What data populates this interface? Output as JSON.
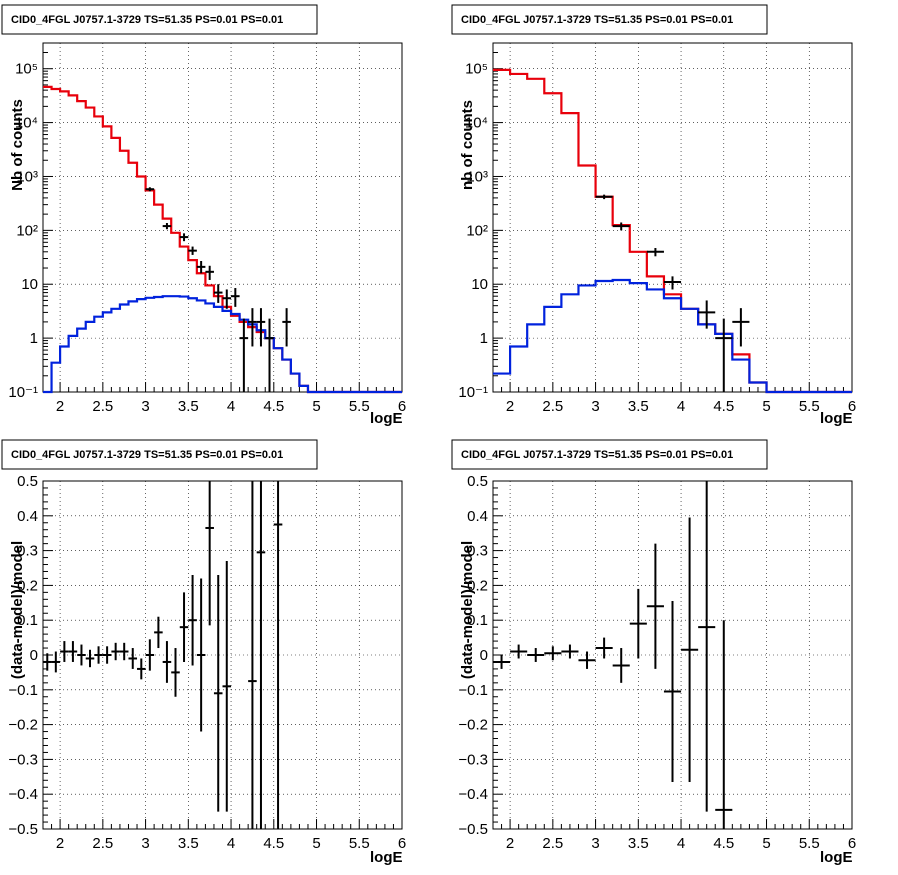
{
  "chart_data": [
    {
      "type": "line",
      "title": "CID0_4FGL J0757.1-3729 TS=51.35 PS=0.01 PS=0.01",
      "xlabel": "logE",
      "ylabel": "Nb of counts",
      "xlim": [
        1.8,
        6.0
      ],
      "ylim": [
        0.1,
        300000
      ],
      "yscale": "log",
      "grid": true,
      "x_ticks": [
        "2",
        "2.5",
        "3",
        "3.5",
        "4",
        "4.5",
        "5",
        "5.5",
        "6"
      ],
      "y_ticks": [
        "10⁻¹",
        "1",
        "10",
        "10²",
        "10³",
        "10⁴",
        "10⁵"
      ],
      "bin_edges": [
        1.8,
        1.9,
        2.0,
        2.1,
        2.2,
        2.3,
        2.4,
        2.5,
        2.6,
        2.7,
        2.8,
        2.9,
        3.0,
        3.1,
        3.2,
        3.3,
        3.4,
        3.5,
        3.6,
        3.7,
        3.8,
        3.9,
        4.0,
        4.1,
        4.2,
        4.3,
        4.4,
        4.5,
        4.6,
        4.7,
        4.8,
        4.9,
        5.0,
        5.1,
        5.2,
        5.3,
        5.4,
        5.5,
        5.6,
        5.7,
        5.8,
        5.9,
        6.0
      ],
      "series": [
        {
          "color": "#e8000b",
          "values": [
            46000,
            42000,
            38000,
            32000,
            25000,
            19000,
            13000,
            8500,
            5200,
            3000,
            1800,
            1000,
            550,
            300,
            165,
            90,
            50,
            28,
            16,
            9.5,
            6,
            3.8,
            2.6,
            2,
            1.6,
            1.3,
            1,
            0.65,
            0.4,
            0.22,
            0.13,
            0.1,
            0.1,
            0.1,
            0.1,
            0.1,
            0.1,
            0.1,
            0.1,
            0.1,
            0.1,
            0.1
          ]
        },
        {
          "color": "#0022dd",
          "values": [
            0.1,
            0.35,
            0.7,
            1.1,
            1.5,
            2,
            2.5,
            3,
            3.5,
            4.2,
            4.8,
            5.3,
            5.6,
            5.8,
            6,
            6,
            5.9,
            5.5,
            5,
            4.4,
            3.8,
            3.2,
            2.8,
            2.2,
            1.8,
            1.4,
            1,
            0.65,
            0.4,
            0.22,
            0.13,
            0.1,
            0.1,
            0.1,
            0.1,
            0.1,
            0.1,
            0.1,
            0.1,
            0.1,
            0.1,
            0.1
          ]
        }
      ],
      "data_points": [
        {
          "x": 3.05,
          "y": 580,
          "lo": 530,
          "hi": 630
        },
        {
          "x": 3.25,
          "y": 120,
          "lo": 105,
          "hi": 137
        },
        {
          "x": 3.45,
          "y": 75,
          "lo": 63,
          "hi": 88
        },
        {
          "x": 3.55,
          "y": 42,
          "lo": 35,
          "hi": 50
        },
        {
          "x": 3.65,
          "y": 21,
          "lo": 16,
          "hi": 27
        },
        {
          "x": 3.75,
          "y": 17,
          "lo": 12,
          "hi": 22
        },
        {
          "x": 3.85,
          "y": 7,
          "lo": 4.5,
          "hi": 10
        },
        {
          "x": 3.95,
          "y": 5.5,
          "lo": 3.5,
          "hi": 8
        },
        {
          "x": 4.05,
          "y": 6,
          "lo": 3.8,
          "hi": 8.5
        },
        {
          "x": 4.15,
          "y": 1,
          "lo": 0.1,
          "hi": 2.3
        },
        {
          "x": 4.25,
          "y": 2,
          "lo": 0.7,
          "hi": 3.6
        },
        {
          "x": 4.35,
          "y": 2,
          "lo": 0.7,
          "hi": 3.6
        },
        {
          "x": 4.45,
          "y": 1,
          "lo": 0.1,
          "hi": 2.3
        },
        {
          "x": 4.65,
          "y": 2,
          "lo": 0.7,
          "hi": 3.6
        }
      ]
    },
    {
      "type": "line",
      "title": "CID0_4FGL J0757.1-3729 TS=51.35 PS=0.01 PS=0.01",
      "xlabel": "logE",
      "ylabel": "nb of counts",
      "xlim": [
        1.8,
        6.0
      ],
      "ylim": [
        0.1,
        300000
      ],
      "yscale": "log",
      "grid": true,
      "x_ticks": [
        "2",
        "2.5",
        "3",
        "3.5",
        "4",
        "4.5",
        "5",
        "5.5",
        "6"
      ],
      "y_ticks": [
        "10⁻¹",
        "1",
        "10",
        "10²",
        "10³",
        "10⁴",
        "10⁵"
      ],
      "bin_edges": [
        1.8,
        2.0,
        2.2,
        2.4,
        2.6,
        2.8,
        3.0,
        3.2,
        3.4,
        3.6,
        3.8,
        4.0,
        4.2,
        4.4,
        4.6,
        4.8,
        5.0,
        5.2,
        5.4,
        5.6,
        5.8,
        6.0
      ],
      "series": [
        {
          "color": "#e8000b",
          "values": [
            95000,
            80000,
            65000,
            35000,
            15000,
            1600,
            420,
            125,
            40,
            14,
            6.5,
            3.5,
            1.8,
            1.2,
            0.5,
            0.15,
            0.1,
            0.1,
            0.1,
            0.1,
            0.1
          ]
        },
        {
          "color": "#0022dd",
          "values": [
            0.22,
            0.7,
            1.8,
            3.8,
            6.5,
            9.5,
            11.5,
            12,
            10.5,
            8,
            5.5,
            3.5,
            1.8,
            1.2,
            0.4,
            0.15,
            0.1,
            0.1,
            0.1,
            0.1,
            0.1
          ]
        }
      ],
      "data_points": [
        {
          "x": 3.1,
          "y": 420,
          "lo": 380,
          "hi": 460
        },
        {
          "x": 3.3,
          "y": 120,
          "lo": 100,
          "hi": 140
        },
        {
          "x": 3.7,
          "y": 40,
          "lo": 33,
          "hi": 47
        },
        {
          "x": 3.9,
          "y": 11,
          "lo": 8,
          "hi": 14
        },
        {
          "x": 4.3,
          "y": 3,
          "lo": 1.5,
          "hi": 5
        },
        {
          "x": 4.5,
          "y": 1,
          "lo": 0.1,
          "hi": 2.3
        },
        {
          "x": 4.7,
          "y": 2,
          "lo": 0.7,
          "hi": 3.6
        }
      ]
    },
    {
      "type": "scatter",
      "title": "CID0_4FGL J0757.1-3729 TS=51.35 PS=0.01 PS=0.01",
      "xlabel": "logE",
      "ylabel": "(data-model)/model",
      "xlim": [
        1.8,
        6.0
      ],
      "ylim": [
        -0.5,
        0.5
      ],
      "grid": true,
      "x_ticks": [
        "2",
        "2.5",
        "3",
        "3.5",
        "4",
        "4.5",
        "5",
        "5.5",
        "6"
      ],
      "y_ticks": [
        "−0.5",
        "−0.4",
        "−0.3",
        "−0.2",
        "−0.1",
        "0",
        "0.1",
        "0.2",
        "0.3",
        "0.4",
        "0.5"
      ],
      "xerr": 0.05,
      "points": [
        {
          "x": 1.85,
          "y": -0.02,
          "err": 0.025
        },
        {
          "x": 1.95,
          "y": -0.02,
          "err": 0.03
        },
        {
          "x": 2.05,
          "y": 0.01,
          "err": 0.03
        },
        {
          "x": 2.15,
          "y": 0.01,
          "err": 0.03
        },
        {
          "x": 2.25,
          "y": 0.0,
          "err": 0.03
        },
        {
          "x": 2.35,
          "y": -0.01,
          "err": 0.025
        },
        {
          "x": 2.45,
          "y": 0.0,
          "err": 0.025
        },
        {
          "x": 2.55,
          "y": 0.0,
          "err": 0.025
        },
        {
          "x": 2.65,
          "y": 0.01,
          "err": 0.025
        },
        {
          "x": 2.75,
          "y": 0.01,
          "err": 0.025
        },
        {
          "x": 2.85,
          "y": -0.01,
          "err": 0.03
        },
        {
          "x": 2.95,
          "y": -0.04,
          "err": 0.03
        },
        {
          "x": 3.05,
          "y": 0.0,
          "err": 0.045
        },
        {
          "x": 3.15,
          "y": 0.065,
          "err": 0.045
        },
        {
          "x": 3.25,
          "y": -0.02,
          "err": 0.06
        },
        {
          "x": 3.35,
          "y": -0.05,
          "err": 0.07
        },
        {
          "x": 3.45,
          "y": 0.08,
          "err": 0.1
        },
        {
          "x": 3.55,
          "y": 0.1,
          "err": 0.13
        },
        {
          "x": 3.65,
          "y": 0.0,
          "err": 0.22
        },
        {
          "x": 3.75,
          "y": 0.365,
          "err": 0.28
        },
        {
          "x": 3.85,
          "y": -0.11,
          "err": 0.34
        },
        {
          "x": 3.95,
          "y": -0.09,
          "err": 0.36
        },
        {
          "x": 4.25,
          "y": -0.075,
          "err": 0.7
        },
        {
          "x": 4.35,
          "y": 0.295,
          "err": 0.9
        },
        {
          "x": 4.55,
          "y": 0.375,
          "err": 0.9
        }
      ]
    },
    {
      "type": "scatter",
      "title": "CID0_4FGL J0757.1-3729 TS=51.35 PS=0.01 PS=0.01",
      "xlabel": "logE",
      "ylabel": "(data-model)/model",
      "xlim": [
        1.8,
        6.0
      ],
      "ylim": [
        -0.5,
        0.5
      ],
      "grid": true,
      "x_ticks": [
        "2",
        "2.5",
        "3",
        "3.5",
        "4",
        "4.5",
        "5",
        "5.5",
        "6"
      ],
      "y_ticks": [
        "−0.5",
        "−0.4",
        "−0.3",
        "−0.2",
        "−0.1",
        "0",
        "0.1",
        "0.2",
        "0.3",
        "0.4",
        "0.5"
      ],
      "xerr": 0.1,
      "points": [
        {
          "x": 1.9,
          "y": -0.02,
          "err": 0.02
        },
        {
          "x": 2.1,
          "y": 0.01,
          "err": 0.02
        },
        {
          "x": 2.3,
          "y": 0.0,
          "err": 0.02
        },
        {
          "x": 2.5,
          "y": 0.005,
          "err": 0.02
        },
        {
          "x": 2.7,
          "y": 0.01,
          "err": 0.02
        },
        {
          "x": 2.9,
          "y": -0.015,
          "err": 0.025
        },
        {
          "x": 3.1,
          "y": 0.02,
          "err": 0.03
        },
        {
          "x": 3.3,
          "y": -0.03,
          "err": 0.05
        },
        {
          "x": 3.5,
          "y": 0.09,
          "err": 0.1
        },
        {
          "x": 3.7,
          "y": 0.14,
          "err": 0.18
        },
        {
          "x": 3.9,
          "y": -0.105,
          "err": 0.26
        },
        {
          "x": 4.1,
          "y": 0.015,
          "err": 0.38
        },
        {
          "x": 4.3,
          "y": 0.08,
          "err": 0.53
        },
        {
          "x": 4.5,
          "y": -0.445,
          "err": 0.545
        }
      ]
    }
  ]
}
